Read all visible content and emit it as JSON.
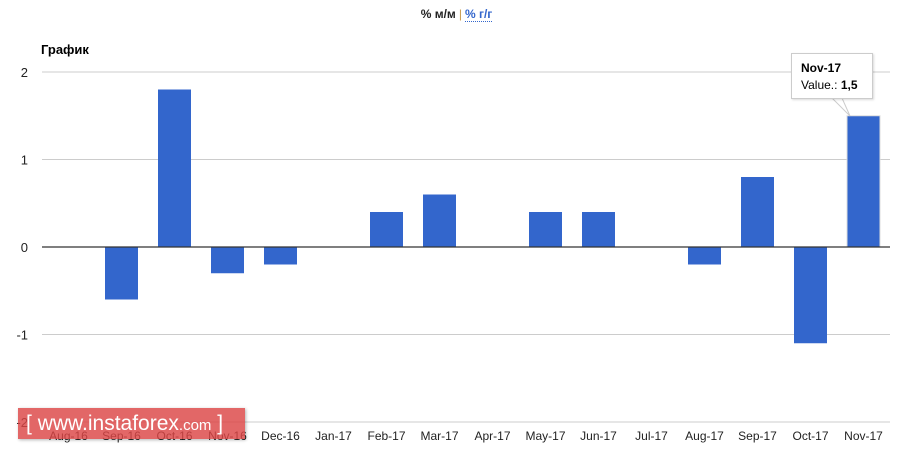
{
  "header": {
    "toggle_active": "% м/м",
    "toggle_separator": "|",
    "toggle_link": "% г/г"
  },
  "chart_title": "График",
  "tooltip": {
    "category": "Nov-17",
    "label": "Value.:",
    "value": "1,5"
  },
  "watermark": {
    "open": "[",
    "text": "www.instaforex",
    "domain": ".com",
    "close": "]"
  },
  "colors": {
    "bar": "#3366cc",
    "grid": "#cccccc",
    "baseline": "#333333",
    "axis_text": "#222222"
  },
  "chart_data": {
    "type": "bar",
    "title": "График",
    "xlabel": "",
    "ylabel": "",
    "categories": [
      "Aug-16",
      "Sep-16",
      "Oct-16",
      "Nov-16",
      "Dec-16",
      "Jan-17",
      "Feb-17",
      "Mar-17",
      "Apr-17",
      "May-17",
      "Jun-17",
      "Jul-17",
      "Aug-17",
      "Sep-17",
      "Oct-17",
      "Nov-17"
    ],
    "values": [
      0,
      -0.6,
      1.8,
      -0.3,
      -0.2,
      0,
      0.4,
      0.6,
      0,
      0.4,
      0.4,
      0,
      -0.2,
      0.8,
      -1.1,
      1.5
    ],
    "ylim": [
      -2,
      2
    ],
    "yticks": [
      2,
      1,
      0,
      -1,
      -2
    ],
    "grid": true,
    "legend": "none",
    "highlighted": {
      "category": "Nov-17",
      "value": 1.5
    }
  }
}
